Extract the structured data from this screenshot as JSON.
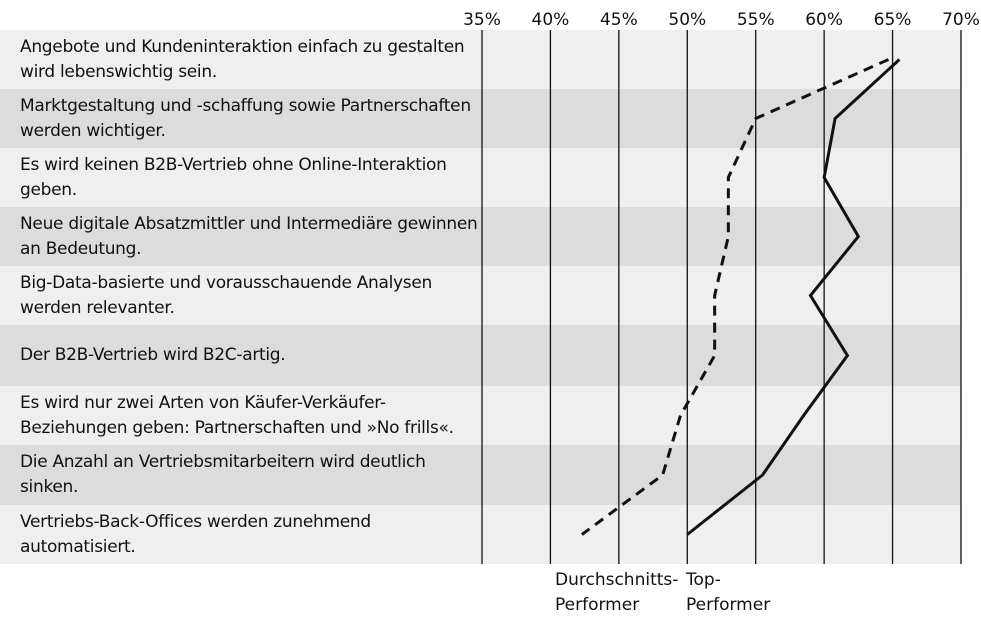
{
  "chart_data": {
    "type": "line",
    "orientation": "horizontal",
    "title": "",
    "xlabel": "",
    "ylabel": "",
    "x_ticks": [
      "35%",
      "40%",
      "45%",
      "50%",
      "55%",
      "60%",
      "65%",
      "70%"
    ],
    "xlim": [
      35,
      70
    ],
    "grid": true,
    "categories": [
      "Angebote und Kundeninteraktion einfach zu gestalten wird lebenswichtig sein.",
      "Marktgestaltung und -schaffung sowie Partnerschaften werden wichtiger.",
      "Es wird keinen B2B-Vertrieb ohne Online-Interaktion geben.",
      "Neue digitale Absatzmittler und Intermediäre gewinnen an Bedeutung.",
      "Big-Data-basierte und vorausschauende Analysen werden relevanter.",
      "Der B2B-Vertrieb wird B2C-artig.",
      "Es wird nur zwei Arten von Käufer-Verkäufer-Beziehungen geben: Partnerschaften und »No frills«.",
      "Die Anzahl an Vertriebsmitarbeitern wird deutlich sinken.",
      "Vertriebs-Back-Offices werden zunehmend automatisiert."
    ],
    "series": [
      {
        "name": "Durchschnitts-Performer",
        "style": "dashed",
        "values": [
          64.7,
          55,
          53,
          53,
          52,
          52,
          49.5,
          48.2,
          42.3
        ]
      },
      {
        "name": "Top-Performer",
        "style": "solid",
        "values": [
          65.5,
          60.8,
          60,
          62.5,
          59,
          61.7,
          58.5,
          55.5,
          50
        ]
      }
    ]
  },
  "legend": {
    "average_line1": "Durchschnitts-",
    "average_line2": "Performer",
    "top_line1": "Top-",
    "top_line2": "Performer"
  },
  "colors": {
    "band_light": "#efefef",
    "band_dark": "#dcdcdc",
    "line": "#111111"
  }
}
